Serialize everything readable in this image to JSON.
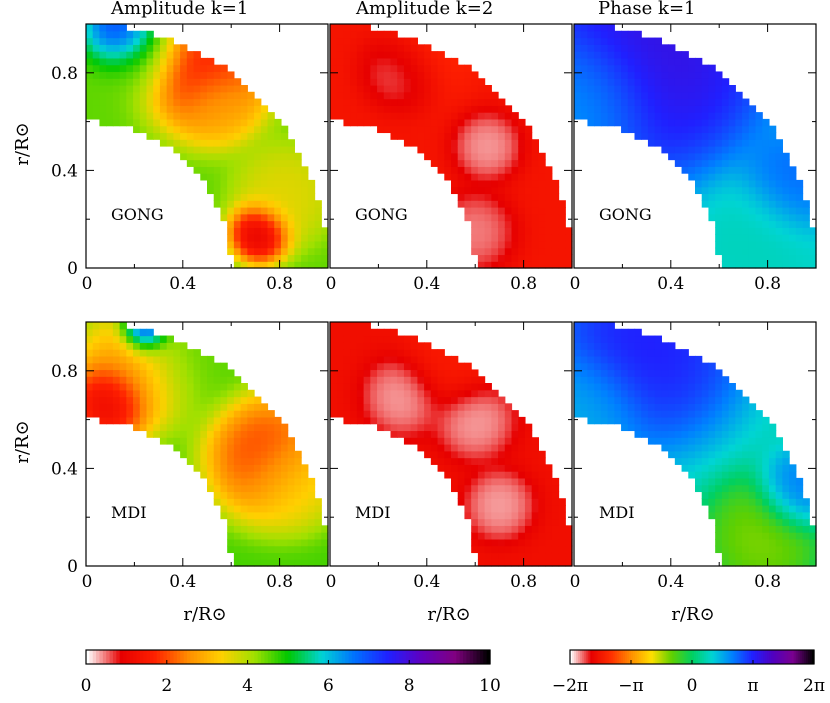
{
  "chart_data": {
    "type": "heatmap",
    "panel_titles": [
      "Amplitude k=1",
      "Amplitude k=2",
      "Phase k=1"
    ],
    "rows": [
      {
        "label": "GONG",
        "ylabel": "r/R⊙",
        "xlabel": ""
      },
      {
        "label": "MDI",
        "ylabel": "r/R⊙",
        "xlabel": "r/R⊙"
      }
    ],
    "x_ticks": [
      "0",
      "0.4",
      "0.8"
    ],
    "y_ticks": [
      "0",
      "0.4",
      "0.8"
    ],
    "xlim": [
      0,
      1
    ],
    "ylim": [
      0,
      1
    ],
    "shell_radii": [
      0.6,
      1.0
    ],
    "amplitude_colorbar": {
      "range": [
        0,
        10
      ],
      "tick_labels": [
        "0",
        "2",
        "4",
        "6",
        "8",
        "10"
      ],
      "colors": [
        "#ffffff",
        "#e60000",
        "#ff2000",
        "#ff8c00",
        "#ffd000",
        "#a0e000",
        "#00c800",
        "#00d4d4",
        "#0070ff",
        "#2020ff",
        "#6000c0",
        "#800080",
        "#000000"
      ]
    },
    "phase_colorbar": {
      "range": [
        -6.2832,
        6.2832
      ],
      "tick_labels": [
        "−2π",
        "−π",
        "0",
        "π",
        "2π"
      ],
      "colors": [
        "#ffffff",
        "#e60000",
        "#ff3000",
        "#ff9000",
        "#ffe000",
        "#60d000",
        "#00d060",
        "#00d4d4",
        "#0080ff",
        "#2020ff",
        "#5000c0",
        "#7a0090",
        "#000000"
      ]
    },
    "panels": [
      {
        "row": "GONG",
        "column": "Amplitude k=1",
        "range": [
          0.5,
          8.5
        ],
        "blobs": [
          [
            0.15,
            0.97,
            0.07,
            8.5
          ],
          [
            0.2,
            0.9,
            0.1,
            4.5
          ],
          [
            0.55,
            0.68,
            0.08,
            3.0
          ],
          [
            0.82,
            0.3,
            0.1,
            3.5
          ],
          [
            0.5,
            0.8,
            0.12,
            1.2
          ],
          [
            0.72,
            0.15,
            0.06,
            0.2
          ]
        ]
      },
      {
        "row": "GONG",
        "column": "Amplitude k=2",
        "range": [
          0.2,
          2.5
        ],
        "blobs": [
          [
            0.3,
            0.82,
            0.08,
            0.3
          ],
          [
            0.65,
            0.5,
            0.07,
            0.2
          ],
          [
            0.6,
            0.15,
            0.08,
            0.3
          ],
          [
            0.4,
            0.9,
            0.1,
            1.8
          ]
        ]
      },
      {
        "row": "GONG",
        "column": "Phase k=1",
        "range": [
          -3.5,
          5.5
        ],
        "blobs": [
          [
            0.3,
            0.88,
            0.25,
            4.0
          ],
          [
            0.05,
            0.7,
            0.15,
            1.5
          ],
          [
            0.75,
            0.15,
            0.12,
            0.8
          ],
          [
            0.9,
            0.35,
            0.1,
            2.5
          ]
        ]
      },
      {
        "row": "MDI",
        "column": "Amplitude k=1",
        "range": [
          0.3,
          9.0
        ],
        "blobs": [
          [
            0.25,
            0.97,
            0.05,
            9.0
          ],
          [
            0.4,
            0.88,
            0.12,
            4.5
          ],
          [
            0.2,
            0.8,
            0.12,
            2.5
          ],
          [
            0.1,
            0.68,
            0.08,
            0.3
          ],
          [
            0.75,
            0.45,
            0.12,
            1.5
          ],
          [
            0.85,
            0.35,
            0.1,
            3.5
          ]
        ]
      },
      {
        "row": "MDI",
        "column": "Amplitude k=2",
        "range": [
          0.2,
          2.2
        ],
        "blobs": [
          [
            0.3,
            0.7,
            0.08,
            0.2
          ],
          [
            0.6,
            0.6,
            0.08,
            0.2
          ],
          [
            0.7,
            0.25,
            0.07,
            0.2
          ],
          [
            0.5,
            0.85,
            0.1,
            1.5
          ]
        ]
      },
      {
        "row": "MDI",
        "column": "Phase k=1",
        "range": [
          -4.0,
          5.5
        ],
        "blobs": [
          [
            0.3,
            0.9,
            0.2,
            3.5
          ],
          [
            0.05,
            0.65,
            0.12,
            1.5
          ],
          [
            0.78,
            0.12,
            0.12,
            -1.5
          ],
          [
            0.92,
            0.3,
            0.08,
            2.5
          ]
        ]
      }
    ]
  }
}
